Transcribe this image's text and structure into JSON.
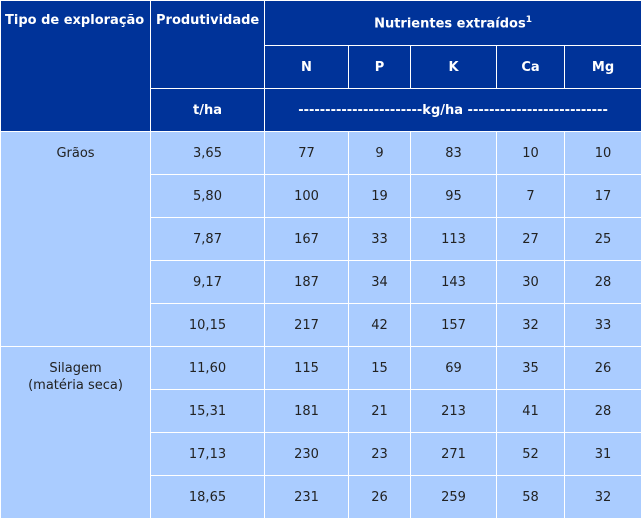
{
  "header": {
    "tipo": "Tipo de exploração",
    "produtividade": "Produtividade",
    "nutrientes": "Nutrientes extraídos",
    "nutrientes_sup": "1",
    "columns": [
      "N",
      "P",
      "K",
      "Ca",
      "Mg"
    ],
    "unit_prod": "t/ha",
    "unit_nutr": "-----------------------kg/ha --------------------------"
  },
  "groups": [
    {
      "label": "Grãos",
      "rows": [
        [
          "3,65",
          "77",
          "9",
          "83",
          "10",
          "10"
        ],
        [
          "5,80",
          "100",
          "19",
          "95",
          "7",
          "17"
        ],
        [
          "7,87",
          "167",
          "33",
          "113",
          "27",
          "25"
        ],
        [
          "9,17",
          "187",
          "34",
          "143",
          "30",
          "28"
        ],
        [
          "10,15",
          "217",
          "42",
          "157",
          "32",
          "33"
        ]
      ]
    },
    {
      "label_line1": "Silagem",
      "label_line2": "(matéria seca)",
      "rows": [
        [
          "11,60",
          "115",
          "15",
          "69",
          "35",
          "26"
        ],
        [
          "15,31",
          "181",
          "21",
          "213",
          "41",
          "28"
        ],
        [
          "17,13",
          "230",
          "23",
          "271",
          "52",
          "31"
        ],
        [
          "18,65",
          "231",
          "26",
          "259",
          "58",
          "32"
        ]
      ]
    }
  ]
}
